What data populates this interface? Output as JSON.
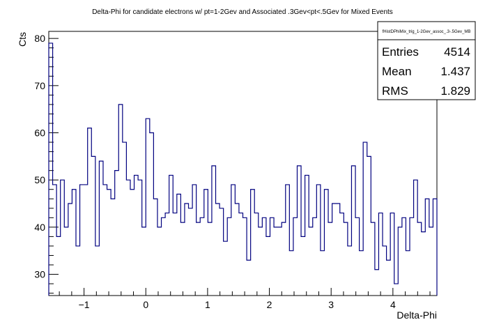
{
  "chart_data": {
    "type": "histogram",
    "title": "Delta-Phi for candidate electrons w/ pt=1-2Gev and Associated .3Gev<pt<.5Gev for Mixed Events",
    "xlabel": "Delta-Phi",
    "ylabel": "Cts",
    "xlim": [
      -1.5708,
      4.7124
    ],
    "ylim": [
      25.5,
      81.5
    ],
    "bins": 100,
    "xticks": [
      -1,
      0,
      1,
      2,
      3,
      4
    ],
    "yticks": [
      30,
      40,
      50,
      60,
      70,
      80
    ],
    "values": [
      79,
      49,
      38,
      50,
      40,
      45,
      48,
      36,
      49,
      49,
      61,
      55,
      36,
      54,
      49,
      48,
      46,
      52,
      66,
      58,
      50,
      48,
      51,
      50,
      40,
      63,
      60,
      46,
      40,
      42,
      43,
      51,
      43,
      47,
      41,
      45,
      44,
      49,
      41,
      42,
      48,
      41,
      53,
      45,
      44,
      37,
      42,
      49,
      45,
      43,
      42,
      33,
      48,
      43,
      40,
      42,
      38,
      42,
      40,
      40,
      41,
      49,
      35,
      42,
      53,
      38,
      51,
      40,
      42,
      49,
      35,
      48,
      41,
      45,
      45,
      43,
      41,
      36,
      53,
      42,
      35,
      58,
      55,
      41,
      31,
      43,
      36,
      33,
      43,
      28,
      40,
      42,
      35,
      42,
      50,
      41,
      39,
      46,
      40,
      46
    ],
    "line_color": "#00007f",
    "legend": "top-right",
    "grid": false,
    "stats": {
      "name": "fHistDPhiMix_trig_1-2Gev_assoc_.3-.5Gev_MB",
      "rows": [
        {
          "label": "Entries",
          "value": "4514"
        },
        {
          "label": "Mean",
          "value": "1.437"
        },
        {
          "label": "RMS",
          "value": "1.829"
        }
      ]
    }
  }
}
